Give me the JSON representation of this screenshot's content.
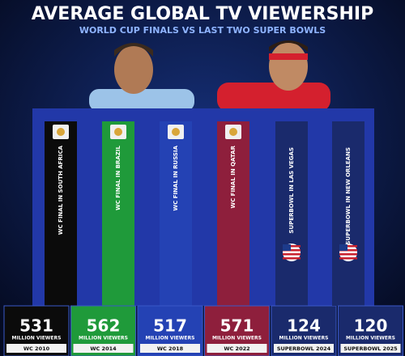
{
  "header": {
    "title": "AVERAGE GLOBAL TV VIEWERSHIP",
    "subtitle": "WORLD CUP FINALS VS LAST TWO SUPER BOWLS"
  },
  "panels": [
    {
      "label": "WC FINAL IN SOUTH AFRICA",
      "value": "531",
      "unit": "MILLION VIEWERS",
      "footer": "WC 2010",
      "color": "#0b0b0b",
      "flag": "wc"
    },
    {
      "label": "WC FINAL IN BRAZIL",
      "value": "562",
      "unit": "MILLION VIEWERS",
      "footer": "WC 2014",
      "color": "#1f9a3a",
      "flag": "wc"
    },
    {
      "label": "WC FINAL IN RUSSIA",
      "value": "517",
      "unit": "MILLION VIEWERS",
      "footer": "WC 2018",
      "color": "#2442b4",
      "flag": "wc"
    },
    {
      "label": "WC FINAL IN QATAR",
      "value": "571",
      "unit": "MILLION VIEWERS",
      "footer": "WC 2022",
      "color": "#8e1f3c",
      "flag": "wc"
    },
    {
      "label": "SUPERBOWL IN LAS VEGAS",
      "value": "124",
      "unit": "MILLION VIEWERS",
      "footer": "SUPERBOWL 2024",
      "color": "#1a2a6c",
      "flag": "us"
    },
    {
      "label": "SUPERBOWL IN NEW ORLEANS",
      "value": "120",
      "unit": "MILLION VIEWERS",
      "footer": "SUPERBOWL 2025",
      "color": "#1a2a6c",
      "flag": "us"
    }
  ]
}
